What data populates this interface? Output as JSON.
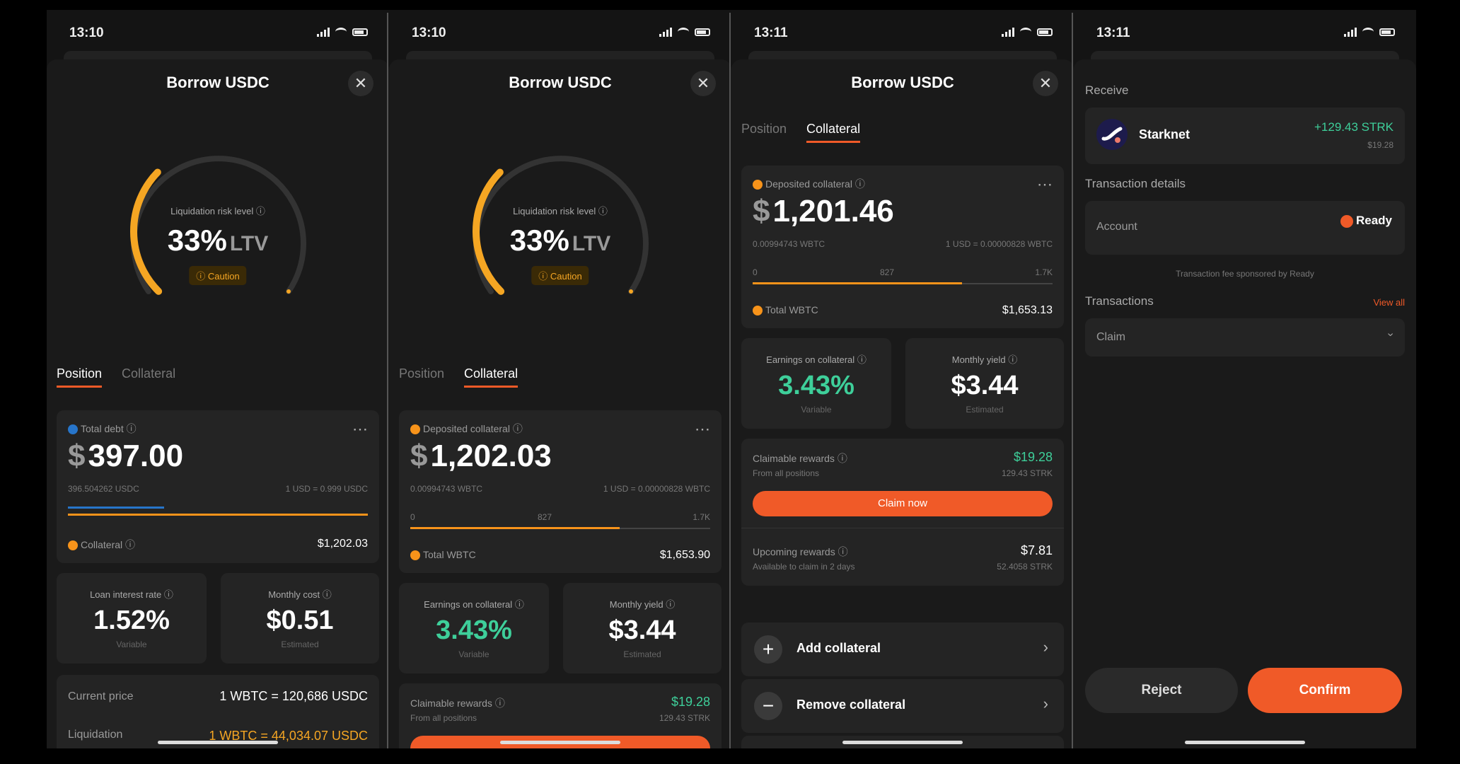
{
  "screens": [
    {
      "time": "13:10",
      "title": "Borrow USDC",
      "gauge": {
        "label": "Liquidation risk level",
        "value": "33%",
        "unit": "LTV",
        "badge": "Caution",
        "fraction": 0.33
      },
      "tabs": [
        "Position",
        "Collateral"
      ],
      "active_tab": 0,
      "debt": {
        "label": "Total debt",
        "amount": "397.00",
        "currency": "$",
        "sub_left": "396.504262 USDC",
        "sub_right": "1 USD = 0.999 USDC",
        "collateral_label": "Collateral",
        "collateral_value": "$1,202.03"
      },
      "stats": [
        {
          "label": "Loan interest rate",
          "value": "1.52%",
          "sub": "Variable"
        },
        {
          "label": "Monthly cost",
          "value": "$0.51",
          "sub": "Estimated"
        }
      ],
      "price": {
        "label": "Current price",
        "value": "1 WBTC = 120,686 USDC"
      },
      "liquidation": {
        "label": "Liquidation",
        "value": "1 WBTC = 44,034.07 USDC"
      }
    },
    {
      "time": "13:10",
      "title": "Borrow USDC",
      "gauge": {
        "label": "Liquidation risk level",
        "value": "33%",
        "unit": "LTV",
        "badge": "Caution",
        "fraction": 0.33
      },
      "tabs": [
        "Position",
        "Collateral"
      ],
      "active_tab": 1,
      "collateral": {
        "label": "Deposited collateral",
        "amount": "1,202.03",
        "currency": "$",
        "sub_left": "0.00994743 WBTC",
        "sub_right": "1 USD = 0.00000828 WBTC",
        "scale": [
          "0",
          "827",
          "1.7K"
        ],
        "total_label": "Total WBTC",
        "total_value": "$1,653.90"
      },
      "stats": [
        {
          "label": "Earnings on collateral",
          "value": "3.43%",
          "sub": "Variable"
        },
        {
          "label": "Monthly yield",
          "value": "$3.44",
          "sub": "Estimated"
        }
      ],
      "rewards": {
        "label": "Claimable rewards",
        "sub": "From all positions",
        "value": "$19.28",
        "value_sub": "129.43 STRK"
      }
    },
    {
      "time": "13:11",
      "title": "Borrow USDC",
      "tabs": [
        "Position",
        "Collateral"
      ],
      "active_tab": 1,
      "collateral": {
        "label": "Deposited collateral",
        "amount": "1,201.46",
        "currency": "$",
        "sub_left": "0.00994743 WBTC",
        "sub_right": "1 USD = 0.00000828 WBTC",
        "scale": [
          "0",
          "827",
          "1.7K"
        ],
        "total_label": "Total WBTC",
        "total_value": "$1,653.13"
      },
      "stats": [
        {
          "label": "Earnings on collateral",
          "value": "3.43%",
          "sub": "Variable"
        },
        {
          "label": "Monthly yield",
          "value": "$3.44",
          "sub": "Estimated"
        }
      ],
      "rewards": {
        "label": "Claimable rewards",
        "sub": "From all positions",
        "value": "$19.28",
        "value_sub": "129.43 STRK",
        "claim_label": "Claim now",
        "upcoming_label": "Upcoming rewards",
        "upcoming_sub": "Available to claim in 2 days",
        "upcoming_value": "$7.81",
        "upcoming_value_sub": "52.4058 STRK"
      },
      "actions": [
        {
          "label": "Add collateral",
          "icon": "plus-icon"
        },
        {
          "label": "Remove collateral",
          "icon": "minus-icon"
        }
      ]
    },
    {
      "time": "13:11",
      "receive": {
        "header": "Receive",
        "name": "Starknet",
        "amount": "+129.43 STRK",
        "usd": "$19.28"
      },
      "details": {
        "header": "Transaction details",
        "account_label": "Account",
        "account_value": "Ready"
      },
      "sponsored": "Transaction fee sponsored by Ready",
      "transactions": {
        "header": "Transactions",
        "view_all": "View all",
        "item": "Claim"
      },
      "buttons": {
        "reject": "Reject",
        "confirm": "Confirm"
      }
    }
  ],
  "colors": {
    "accent": "#f05a28",
    "gauge": "#f5a623",
    "green": "#3ecf9a",
    "btc": "#f7931a",
    "usdc": "#2775ca"
  }
}
